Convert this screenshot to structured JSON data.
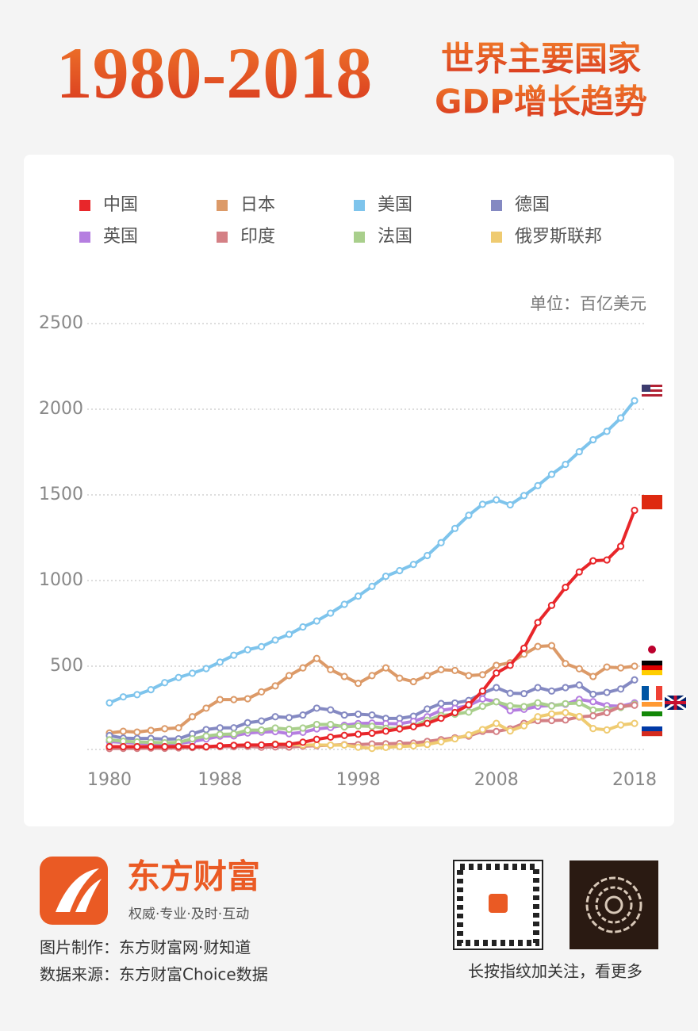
{
  "chart_data": {
    "type": "line",
    "title": "1980-2018",
    "subtitle": [
      "世界主要国家",
      "GDP增长趋势"
    ],
    "unit_label": "单位：百亿美元",
    "x": [
      1980,
      1981,
      1982,
      1983,
      1984,
      1985,
      1986,
      1987,
      1988,
      1989,
      1990,
      1991,
      1992,
      1993,
      1994,
      1995,
      1996,
      1997,
      1998,
      1999,
      2000,
      2001,
      2002,
      2003,
      2004,
      2005,
      2006,
      2007,
      2008,
      2009,
      2010,
      2011,
      2012,
      2013,
      2014,
      2015,
      2016,
      2017,
      2018
    ],
    "xlim": [
      1980,
      2018
    ],
    "xticks": [
      1980,
      1988,
      1998,
      2008,
      2018
    ],
    "ylim": [
      0,
      2500
    ],
    "yticks": [
      500,
      1000,
      1500,
      2000,
      2500
    ],
    "grid": true,
    "series": [
      {
        "name": "美国",
        "color": "#7ec4ec",
        "values": [
          286,
          321,
          334,
          363,
          404,
          434,
          459,
          486,
          524,
          564,
          596,
          614,
          653,
          686,
          729,
          764,
          810,
          861,
          909,
          966,
          1025,
          1058,
          1094,
          1146,
          1221,
          1304,
          1381,
          1445,
          1471,
          1442,
          1496,
          1554,
          1620,
          1678,
          1752,
          1822,
          1871,
          1949,
          2050
        ]
      },
      {
        "name": "日本",
        "color": "#dc9a68",
        "values": [
          110,
          120,
          115,
          125,
          135,
          140,
          205,
          255,
          305,
          305,
          310,
          350,
          385,
          445,
          490,
          545,
          480,
          440,
          400,
          445,
          490,
          430,
          410,
          445,
          480,
          475,
          445,
          450,
          505,
          520,
          570,
          615,
          620,
          515,
          485,
          440,
          495,
          490,
          500
        ]
      },
      {
        "name": "德国",
        "color": "#8489c2",
        "values": [
          95,
          80,
          78,
          78,
          74,
          76,
          105,
          130,
          140,
          140,
          170,
          180,
          205,
          200,
          215,
          255,
          245,
          215,
          220,
          215,
          195,
          195,
          208,
          250,
          282,
          285,
          300,
          342,
          375,
          342,
          340,
          375,
          355,
          375,
          390,
          336,
          347,
          367,
          420
        ]
      },
      {
        "name": "英国",
        "color": "#b57ee0",
        "values": [
          60,
          55,
          51,
          48,
          46,
          49,
          60,
          75,
          92,
          93,
          110,
          115,
          118,
          106,
          114,
          134,
          142,
          155,
          165,
          168,
          165,
          164,
          178,
          205,
          242,
          254,
          271,
          309,
          293,
          241,
          248,
          266,
          270,
          278,
          306,
          293,
          269,
          266,
          286
        ]
      },
      {
        "name": "法国",
        "color": "#a9cf8c",
        "values": [
          70,
          62,
          58,
          55,
          53,
          55,
          76,
          92,
          102,
          104,
          127,
          127,
          139,
          132,
          139,
          160,
          160,
          146,
          151,
          149,
          137,
          138,
          150,
          184,
          212,
          220,
          232,
          266,
          292,
          269,
          264,
          286,
          268,
          281,
          285,
          244,
          247,
          259,
          278
        ]
      },
      {
        "name": "印度",
        "color": "#d48085",
        "values": [
          19,
          20,
          20,
          22,
          21,
          23,
          25,
          28,
          30,
          30,
          32,
          27,
          29,
          28,
          33,
          36,
          39,
          42,
          42,
          46,
          47,
          49,
          51,
          61,
          71,
          82,
          92,
          120,
          119,
          134,
          166,
          182,
          183,
          186,
          204,
          210,
          229,
          265,
          272
        ]
      },
      {
        "name": "俄罗斯联邦",
        "color": "#efcb71",
        "values": [
          null,
          null,
          null,
          null,
          null,
          null,
          null,
          null,
          null,
          null,
          null,
          null,
          46,
          44,
          40,
          40,
          39,
          40,
          27,
          20,
          26,
          31,
          35,
          43,
          59,
          76,
          99,
          130,
          166,
          122,
          152,
          205,
          221,
          229,
          206,
          136,
          128,
          157,
          166
        ]
      },
      {
        "name": "中国",
        "color": "#e8262a",
        "values": [
          30,
          30,
          30,
          30,
          30,
          31,
          30,
          30,
          35,
          38,
          40,
          40,
          43,
          44,
          56,
          73,
          86,
          96,
          103,
          109,
          121,
          134,
          147,
          166,
          196,
          229,
          275,
          355,
          460,
          505,
          605,
          755,
          855,
          960,
          1050,
          1115,
          1120,
          1200,
          1410
        ]
      }
    ],
    "legend_order": [
      7,
      1,
      0,
      2,
      3,
      5,
      4,
      6
    ]
  },
  "footer": {
    "brand": "东方财富",
    "slogan": "权威·专业·及时·互动",
    "credit": "图片制作：东方财富网·财知道",
    "source": "数据来源：东方财富Choice数据",
    "follow": "长按指纹加关注，看更多"
  }
}
